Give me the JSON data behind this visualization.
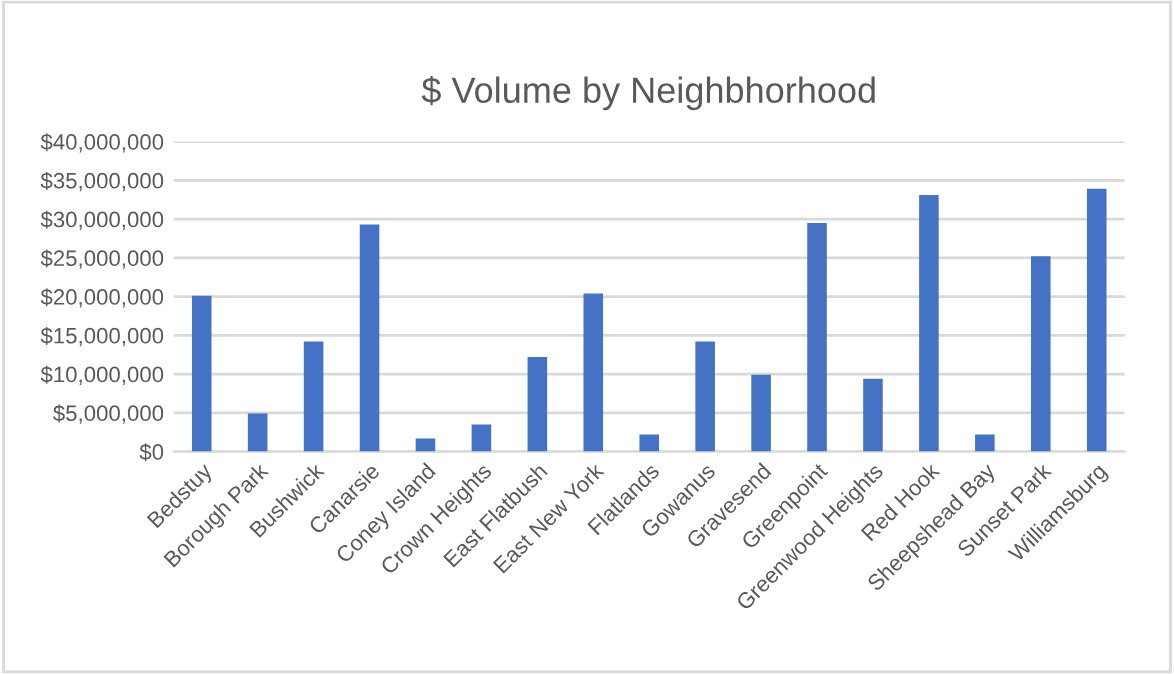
{
  "chart_data": {
    "type": "bar",
    "title": "$ Volume by Neighbhorhood",
    "categories": [
      "Bedstuy",
      "Borough Park",
      "Bushwick",
      "Canarsie",
      "Coney Island",
      "Crown Heights",
      "East Flatbush",
      "East New York",
      "Flatlands",
      "Gowanus",
      "Gravesend",
      "Greenpoint",
      "Greenwood Heights",
      "Red Hook",
      "Sheepshead Bay",
      "Sunset Park",
      "Williamsburg"
    ],
    "values": [
      20100000,
      4900000,
      14200000,
      29300000,
      1700000,
      3500000,
      12200000,
      20400000,
      2200000,
      14200000,
      9900000,
      29500000,
      9400000,
      33100000,
      2200000,
      25200000,
      33900000
    ],
    "color": "#4472c4",
    "ylim": [
      0,
      40000000
    ],
    "yticks": [
      {
        "value": 0,
        "label": "$0"
      },
      {
        "value": 5000000,
        "label": "$5,000,000"
      },
      {
        "value": 10000000,
        "label": "$10,000,000"
      },
      {
        "value": 15000000,
        "label": "$15,000,000"
      },
      {
        "value": 20000000,
        "label": "$20,000,000"
      },
      {
        "value": 25000000,
        "label": "$25,000,000"
      },
      {
        "value": 30000000,
        "label": "$30,000,000"
      },
      {
        "value": 35000000,
        "label": "$35,000,000"
      },
      {
        "value": 40000000,
        "label": "$40,000,000"
      }
    ],
    "grid": "y"
  }
}
